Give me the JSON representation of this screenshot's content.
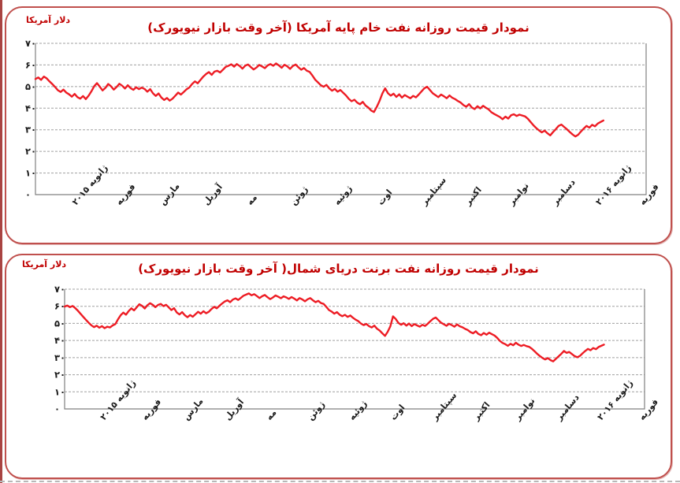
{
  "page": {
    "background": "#ffffff",
    "accent_title_color": "#c00000",
    "panel_border_color": "#c0504d",
    "left_rule_color": "#a94442",
    "grid_color": "#a0a0a0",
    "axis_color": "#808080"
  },
  "chart_data": [
    {
      "id": "wti",
      "type": "line",
      "title": "نمودار قیمت روزانه نفت خام پایه آمریکا (آخر وقت بازار نیویورک)",
      "ylabel": "دلار آمریکا",
      "xlabel": "",
      "ylim": [
        0,
        70
      ],
      "grid": "dashed-horizontal",
      "legend": "none",
      "line_color": "#ed1c24",
      "x_span_fraction": 0.93,
      "yticks": {
        "values": [
          70,
          60,
          50,
          40,
          30,
          20,
          10,
          0
        ],
        "labels": [
          "۷۰",
          "۶۰",
          "۵۰",
          "۴۰",
          "۳۰",
          "۲۰",
          "۱۰",
          "۰"
        ]
      },
      "x_categories": [
        "ژانویه ۲۰۱۵",
        "فوریه",
        "مارس",
        "آوریل",
        "مه",
        "ژوئن",
        "ژوئیه",
        "اوت",
        "سپتامبر",
        "اکتبر",
        "نوامبر",
        "دسامبر",
        "ژانویه ۲۰۱۶",
        "فوریه"
      ],
      "series": [
        {
          "values": [
            53.5,
            54.2,
            53.1,
            54.6,
            53.8,
            52.4,
            51.2,
            49.8,
            48.3,
            47.5,
            48.6,
            47.2,
            46.4,
            45.3,
            46.6,
            45.1,
            44.4,
            45.6,
            44.2,
            45.8,
            47.8,
            50.2,
            51.6,
            49.9,
            48.2,
            49.4,
            51.2,
            50.1,
            48.6,
            49.8,
            51.3,
            50.4,
            49.1,
            50.6,
            49.3,
            48.5,
            49.7,
            48.8,
            49.5,
            48.9,
            47.6,
            48.8,
            46.9,
            45.7,
            46.8,
            44.9,
            43.8,
            44.7,
            43.5,
            44.4,
            45.8,
            47.2,
            46.3,
            47.5,
            48.7,
            49.6,
            51.2,
            52.4,
            51.5,
            53.1,
            54.6,
            55.8,
            56.7,
            55.4,
            56.9,
            57.3,
            56.5,
            57.8,
            59.1,
            59.6,
            60.3,
            59.2,
            60.4,
            59.5,
            58.3,
            59.7,
            60.2,
            59.0,
            57.9,
            58.8,
            60.0,
            59.3,
            58.5,
            59.8,
            60.4,
            59.6,
            60.7,
            59.8,
            58.7,
            60.1,
            59.4,
            58.2,
            59.5,
            60.2,
            58.9,
            57.8,
            58.6,
            57.3,
            56.8,
            55.1,
            53.2,
            51.9,
            50.6,
            49.9,
            50.8,
            49.2,
            48.1,
            48.9,
            47.6,
            48.4,
            47.1,
            45.9,
            44.3,
            43.2,
            43.9,
            42.6,
            41.8,
            42.9,
            41.2,
            40.3,
            38.9,
            38.2,
            40.6,
            43.4,
            46.8,
            49.2,
            46.9,
            45.8,
            46.7,
            45.2,
            46.4,
            44.9,
            46.1,
            45.3,
            44.6,
            45.7,
            45.0,
            46.3,
            47.8,
            49.2,
            49.9,
            48.4,
            46.9,
            46.0,
            45.1,
            46.3,
            45.5,
            44.6,
            45.9,
            44.8,
            44.2,
            43.3,
            42.6,
            41.4,
            40.7,
            41.9,
            40.3,
            39.6,
            40.9,
            39.9,
            41.1,
            40.2,
            39.4,
            38.1,
            37.3,
            36.6,
            35.9,
            34.9,
            36.1,
            35.2,
            36.7,
            37.2,
            36.4,
            37.0,
            36.6,
            36.2,
            35.1,
            33.6,
            32.1,
            30.8,
            29.7,
            28.8,
            29.6,
            28.4,
            27.4,
            28.9,
            30.3,
            31.8,
            32.4,
            31.3,
            30.2,
            29.0,
            27.8,
            26.9,
            27.7,
            29.2,
            30.6,
            31.8,
            31.0,
            32.3,
            31.6,
            32.9,
            33.6,
            34.3
          ]
        }
      ]
    },
    {
      "id": "brent",
      "type": "line",
      "title": "نمودار قیمت روزانه نفت برنت دریای شمال( آخر وقت بازار نیویورک)",
      "ylabel": "دلار آمریکا",
      "xlabel": "",
      "ylim": [
        0,
        70
      ],
      "grid": "dashed-horizontal",
      "legend": "none",
      "line_color": "#ed1c24",
      "x_span_fraction": 0.93,
      "yticks": {
        "values": [
          70,
          60,
          50,
          40,
          30,
          20,
          10,
          0
        ],
        "labels": [
          "۷۰",
          "۶۰",
          "۵۰",
          "۴۰",
          "۳۰",
          "۲۰",
          "۱۰",
          "۰"
        ]
      },
      "x_categories": [
        "ژانویه ۲۰۱۵",
        "فوریه",
        "مارس",
        "آوریل",
        "مه",
        "ژوئن",
        "ژوئیه",
        "اوت",
        "سپتامبر",
        "اکتبر",
        "نوامبر",
        "دسامبر",
        "ژانویه ۲۰۱۶",
        "فوریه"
      ],
      "series": [
        {
          "values": [
            59.8,
            60.4,
            59.5,
            60.2,
            58.9,
            57.4,
            55.6,
            53.8,
            52.1,
            50.4,
            48.9,
            47.8,
            48.7,
            47.5,
            48.4,
            47.2,
            48.1,
            47.6,
            48.8,
            49.6,
            52.4,
            54.8,
            56.3,
            55.1,
            57.2,
            58.8,
            57.6,
            59.4,
            61.2,
            60.3,
            58.7,
            60.6,
            61.8,
            60.9,
            59.5,
            60.8,
            61.4,
            60.1,
            60.9,
            59.3,
            57.8,
            58.9,
            56.4,
            55.2,
            56.6,
            54.8,
            53.6,
            54.9,
            53.9,
            55.3,
            56.8,
            55.7,
            57.1,
            55.9,
            56.8,
            58.4,
            59.7,
            58.8,
            60.3,
            61.6,
            62.8,
            63.5,
            62.4,
            63.9,
            64.6,
            63.7,
            64.9,
            66.2,
            66.8,
            67.5,
            66.4,
            67.1,
            66.0,
            64.8,
            65.9,
            66.6,
            65.3,
            64.2,
            65.1,
            66.3,
            65.6,
            64.7,
            65.8,
            65.2,
            64.3,
            65.4,
            64.5,
            63.4,
            64.8,
            64.0,
            62.9,
            64.1,
            64.8,
            63.5,
            62.4,
            63.2,
            61.9,
            61.4,
            59.7,
            57.8,
            56.9,
            55.7,
            56.6,
            55.1,
            54.2,
            55.0,
            53.8,
            54.6,
            53.3,
            52.2,
            51.3,
            49.9,
            49.0,
            49.7,
            48.4,
            47.6,
            48.7,
            46.9,
            45.8,
            44.2,
            42.7,
            45.1,
            48.3,
            54.1,
            52.6,
            50.3,
            49.2,
            50.1,
            48.7,
            49.9,
            48.4,
            49.6,
            48.8,
            48.1,
            49.2,
            48.5,
            49.8,
            51.3,
            52.7,
            53.4,
            51.9,
            50.4,
            49.5,
            48.6,
            49.8,
            49.0,
            48.1,
            49.4,
            48.3,
            47.7,
            46.8,
            46.1,
            44.9,
            44.2,
            45.4,
            43.8,
            43.1,
            44.4,
            43.4,
            44.6,
            43.7,
            42.9,
            41.6,
            39.8,
            38.6,
            37.9,
            36.9,
            38.1,
            37.2,
            38.7,
            37.6,
            36.8,
            37.4,
            36.7,
            36.3,
            35.2,
            33.7,
            32.2,
            30.9,
            29.8,
            28.9,
            29.7,
            28.5,
            27.8,
            29.3,
            30.7,
            32.2,
            33.9,
            32.8,
            33.3,
            32.1,
            30.9,
            30.2,
            31.0,
            32.5,
            33.9,
            35.1,
            34.3,
            35.6,
            34.9,
            36.2,
            36.9,
            37.6
          ]
        }
      ]
    }
  ]
}
